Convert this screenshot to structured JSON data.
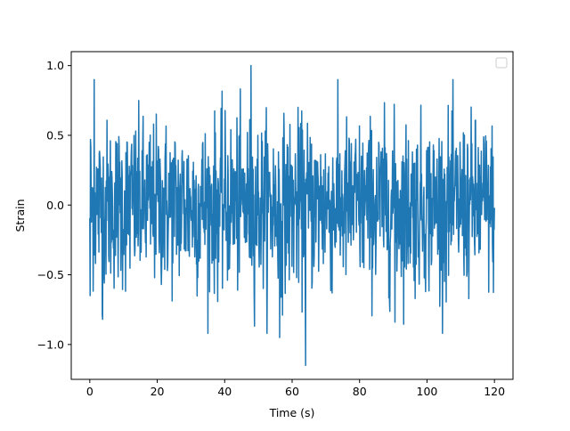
{
  "chart_data": {
    "type": "line",
    "title": "",
    "xlabel": "Time (s)",
    "ylabel": "Strain",
    "xlim": [
      -5.5,
      125.5
    ],
    "ylim": [
      -1.25,
      1.1
    ],
    "x_ticks": [
      0,
      20,
      40,
      60,
      80,
      100,
      120
    ],
    "x_tick_labels": [
      "0",
      "20",
      "40",
      "60",
      "80",
      "100",
      "120"
    ],
    "y_ticks": [
      1.0,
      0.5,
      0.0,
      -0.5,
      -1.0
    ],
    "y_tick_labels": [
      "1.0",
      "0.5",
      "0.0",
      "−0.5",
      "−1.0"
    ],
    "grid": false,
    "legend": {
      "placement": "upper-right",
      "entries": []
    },
    "series": [
      {
        "color": "#1f77b4",
        "x_range": [
          0,
          120
        ],
        "sample_count": 1200,
        "noise_std": 0.3,
        "min_point": {
          "x": 64,
          "y": -1.15
        },
        "max_point": {
          "x": 48,
          "y": 1.0
        },
        "notable_points": [
          {
            "x": 0.1,
            "y": -0.65
          },
          {
            "x": 0.2,
            "y": 0.47
          },
          {
            "x": 1.3,
            "y": 0.9
          },
          {
            "x": 3.8,
            "y": -0.82
          },
          {
            "x": 47.8,
            "y": 1.0
          },
          {
            "x": 56.3,
            "y": -0.95
          },
          {
            "x": 64.0,
            "y": -1.15
          },
          {
            "x": 90.5,
            "y": -0.84
          },
          {
            "x": 120.0,
            "y": -0.02
          }
        ]
      }
    ]
  }
}
